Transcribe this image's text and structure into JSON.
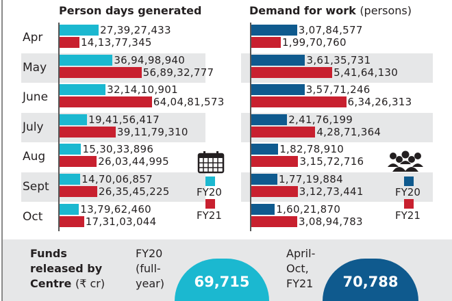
{
  "chart_data": [
    {
      "type": "bar",
      "orientation": "horizontal",
      "title": "Person days generated",
      "categories": [
        "Apr",
        "May",
        "June",
        "July",
        "Aug",
        "Sept",
        "Oct"
      ],
      "series": [
        {
          "name": "FY20",
          "color": "#1bb8d0",
          "values": [
            273927433,
            369498940,
            321410901,
            194156417,
            153033896,
            147006857,
            137962460
          ],
          "labels": [
            "27,39,27,433",
            "36,94,98,940",
            "32,14,10,901",
            "19,41,56,417",
            "15,30,33,896",
            "14,70,06,857",
            "13,79,62,460"
          ]
        },
        {
          "name": "FY21",
          "color": "#c8202f",
          "values": [
            141377345,
            568932777,
            640481573,
            391179310,
            260344995,
            263545225,
            173103044
          ],
          "labels": [
            "14,13,77,345",
            "56,89,32,777",
            "64,04,81,573",
            "39,11,79,310",
            "26,03,44,995",
            "26,35,45,225",
            "17,31,03,044"
          ]
        }
      ],
      "legend_icon": "calendar-icon"
    },
    {
      "type": "bar",
      "orientation": "horizontal",
      "title": "Demand for work",
      "title_unit": "(persons)",
      "categories": [
        "Apr",
        "May",
        "June",
        "July",
        "Aug",
        "Sept",
        "Oct"
      ],
      "series": [
        {
          "name": "FY20",
          "color": "#0f5a8e",
          "values": [
            30784577,
            36135731,
            35771246,
            24176199,
            18278910,
            17719884,
            16021870
          ],
          "labels": [
            "3,07,84,577",
            "3,61,35,731",
            "3,57,71,246",
            "2,41,76,199",
            "1,82,78,910",
            "1,77,19,884",
            "1,60,21,870"
          ]
        },
        {
          "name": "FY21",
          "color": "#c8202f",
          "values": [
            19970760,
            54164130,
            63426313,
            42871364,
            31572716,
            31273441,
            30894783
          ],
          "labels": [
            "1,99,70,760",
            "5,41,64,130",
            "6,34,26,313",
            "4,28,71,364",
            "3,15,72,716",
            "3,12,73,441",
            "3,08,94,783"
          ]
        }
      ],
      "legend_icon": "people-group-icon"
    }
  ],
  "funds": {
    "label_lines": [
      "Funds",
      "released by"
    ],
    "label_centre": "Centre",
    "label_unit": "(₹ cr)",
    "fy20": {
      "lines": [
        "FY20",
        "(full-",
        "year)"
      ],
      "value": "69,715",
      "color": "#1bb8d0"
    },
    "fy21": {
      "lines": [
        "April-",
        "Oct,",
        "FY21"
      ],
      "value": "70,788",
      "color": "#0f5a8e"
    }
  }
}
